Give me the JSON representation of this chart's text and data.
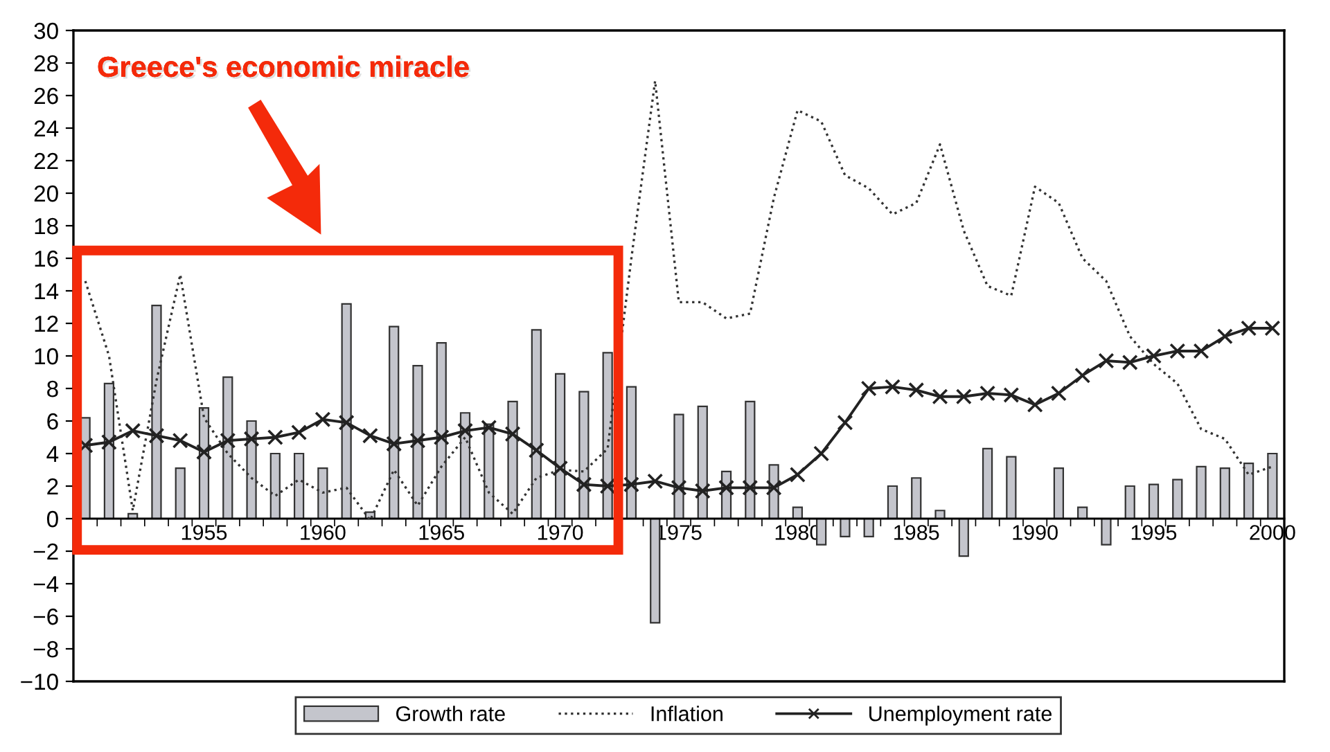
{
  "chart_data": {
    "type": "bar",
    "annotations": [
      "Greece's economic miracle"
    ],
    "categories": [
      null,
      null,
      null,
      null,
      null,
      "1955",
      null,
      null,
      null,
      null,
      "1960",
      null,
      null,
      null,
      null,
      "1965",
      null,
      null,
      null,
      null,
      "1970",
      null,
      null,
      null,
      null,
      "1975",
      null,
      null,
      null,
      null,
      "1980",
      null,
      null,
      null,
      null,
      "1985",
      null,
      null,
      null,
      null,
      "1990",
      null,
      null,
      null,
      null,
      "1995",
      null,
      null,
      null,
      null,
      "2000"
    ],
    "series": [
      {
        "name": "Growth rate",
        "color": "#c4c5cc",
        "values": [
          6.2,
          8.3,
          0.3,
          13.1,
          3.1,
          6.8,
          8.7,
          6.0,
          4.0,
          4.0,
          3.1,
          13.2,
          0.4,
          11.8,
          9.4,
          10.8,
          6.5,
          5.8,
          7.2,
          11.6,
          8.9,
          7.8,
          10.2,
          8.1,
          -6.4,
          6.4,
          6.9,
          2.9,
          7.2,
          3.3,
          0.7,
          -1.6,
          -1.1,
          -1.1,
          2.0,
          2.5,
          0.5,
          -2.3,
          4.3,
          3.8,
          null,
          3.1,
          0.7,
          -1.6,
          2.0,
          2.1,
          2.4,
          3.2,
          3.1,
          3.4,
          4.0
        ]
      },
      {
        "name": "Inflation",
        "type": "line",
        "color": "#333333",
        "line_style": "dotted",
        "marker": "none",
        "values": [
          14.6,
          10.0,
          0.5,
          8.5,
          15.0,
          6.2,
          4.0,
          2.5,
          1.4,
          2.4,
          1.6,
          1.9,
          -0.1,
          3.0,
          0.8,
          3.2,
          5.0,
          1.6,
          0.3,
          2.5,
          3.0,
          2.9,
          4.3,
          16.0,
          26.9,
          13.3,
          13.3,
          12.3,
          12.6,
          19.7,
          25.1,
          24.4,
          21.1,
          20.3,
          18.7,
          19.4,
          23.0,
          17.7,
          14.3,
          13.7,
          20.4,
          19.4,
          16.0,
          14.6,
          11.2,
          9.5,
          8.3,
          5.5,
          4.9,
          2.7,
          3.2
        ]
      },
      {
        "name": "Unemployment rate",
        "type": "line",
        "color": "#222222",
        "line_style": "solid",
        "marker": "cross",
        "values": [
          4.5,
          4.7,
          5.4,
          5.1,
          4.8,
          4.1,
          4.8,
          4.9,
          5.0,
          5.3,
          6.1,
          5.9,
          5.1,
          4.6,
          4.8,
          5.0,
          5.4,
          5.6,
          5.2,
          4.2,
          3.1,
          2.1,
          2.0,
          2.1,
          2.3,
          1.9,
          1.7,
          1.9,
          1.9,
          1.9,
          2.7,
          4.0,
          5.9,
          8.0,
          8.1,
          7.9,
          7.5,
          7.5,
          7.7,
          7.6,
          7.0,
          7.7,
          8.8,
          9.7,
          9.6,
          10.0,
          10.3,
          10.3,
          11.2,
          11.7,
          11.7
        ]
      }
    ],
    "ylim": [
      -10,
      30
    ],
    "yticks": [
      -10,
      -8,
      -6,
      -4,
      -2,
      0,
      2,
      4,
      6,
      8,
      10,
      12,
      14,
      16,
      18,
      20,
      22,
      24,
      26,
      28,
      30
    ],
    "grid": false,
    "legend": "bottom"
  }
}
